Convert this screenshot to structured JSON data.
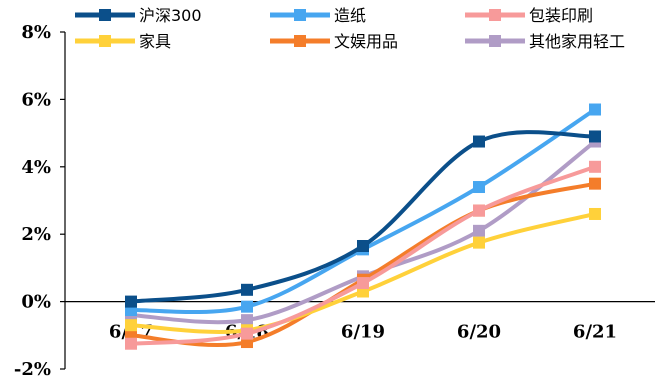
{
  "chart_data": {
    "type": "line",
    "categories": [
      "6/17",
      "6/18",
      "6/19",
      "6/20",
      "6/21"
    ],
    "y_ticks": [
      "-2%",
      "0%",
      "2%",
      "4%",
      "6%",
      "8%"
    ],
    "ylim": [
      -2,
      8
    ],
    "y_unit": "%",
    "legend_position": "top",
    "series": [
      {
        "name": "沪深300",
        "color": "#0b4f8a",
        "values": [
          0.0,
          0.35,
          1.65,
          4.75,
          4.9
        ]
      },
      {
        "name": "造纸",
        "color": "#47a6f0",
        "values": [
          -0.25,
          -0.15,
          1.55,
          3.4,
          5.7
        ]
      },
      {
        "name": "包装印刷",
        "color": "#f79a9a",
        "values": [
          -1.25,
          -0.95,
          0.55,
          2.7,
          4.0
        ]
      },
      {
        "name": "家具",
        "color": "#ffd13a",
        "values": [
          -0.7,
          -0.85,
          0.3,
          1.75,
          2.6
        ]
      },
      {
        "name": "文娱用品",
        "color": "#f47d2a",
        "values": [
          -1.0,
          -1.2,
          0.65,
          2.7,
          3.5
        ]
      },
      {
        "name": "其他家用轻工",
        "color": "#b09cc6",
        "values": [
          -0.4,
          -0.55,
          0.75,
          2.1,
          4.75
        ]
      }
    ]
  }
}
